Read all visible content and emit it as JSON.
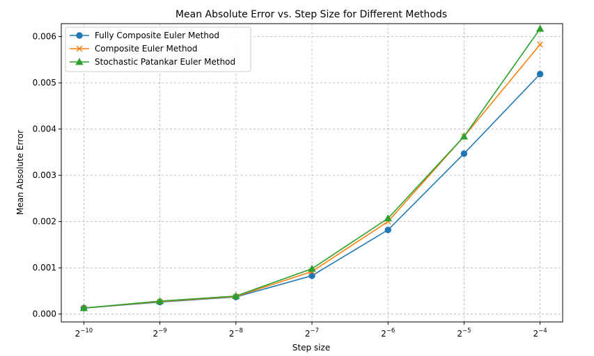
{
  "chart_data": {
    "type": "line",
    "title": "Mean Absolute Error vs. Step Size for Different Methods",
    "xlabel": "Step size",
    "ylabel": "Mean Absolute Error",
    "x_scale": "log2",
    "x": [
      0.0009765625,
      0.001953125,
      0.00390625,
      0.0078125,
      0.015625,
      0.03125,
      0.0625
    ],
    "x_ticks": [
      {
        "base": "2",
        "exp": "−10"
      },
      {
        "base": "2",
        "exp": "−9"
      },
      {
        "base": "2",
        "exp": "−8"
      },
      {
        "base": "2",
        "exp": "−7"
      },
      {
        "base": "2",
        "exp": "−6"
      },
      {
        "base": "2",
        "exp": "−5"
      },
      {
        "base": "2",
        "exp": "−4"
      }
    ],
    "y_ticks": [
      0,
      0.001,
      0.002,
      0.003,
      0.004,
      0.005,
      0.006
    ],
    "y_tick_labels": [
      "0.000",
      "0.001",
      "0.002",
      "0.003",
      "0.004",
      "0.005",
      "0.006"
    ],
    "ylim": [
      -0.00017,
      0.00628
    ],
    "grid": true,
    "legend_position": "top-left",
    "series": [
      {
        "name": "Fully Composite Euler Method",
        "color": "#1f77b4",
        "marker": "circle",
        "values": [
          0.00013,
          0.00026,
          0.00037,
          0.00083,
          0.00182,
          0.00347,
          0.00519
        ]
      },
      {
        "name": "Composite Euler Method",
        "color": "#ff7f0e",
        "marker": "x",
        "values": [
          0.00013,
          0.00027,
          0.00038,
          0.00092,
          0.002,
          0.00384,
          0.00583
        ]
      },
      {
        "name": "Stochastic Patankar Euler Method",
        "color": "#2ca02c",
        "marker": "triangle",
        "values": [
          0.00013,
          0.00028,
          0.00039,
          0.00098,
          0.00207,
          0.00384,
          0.00617
        ]
      }
    ]
  }
}
